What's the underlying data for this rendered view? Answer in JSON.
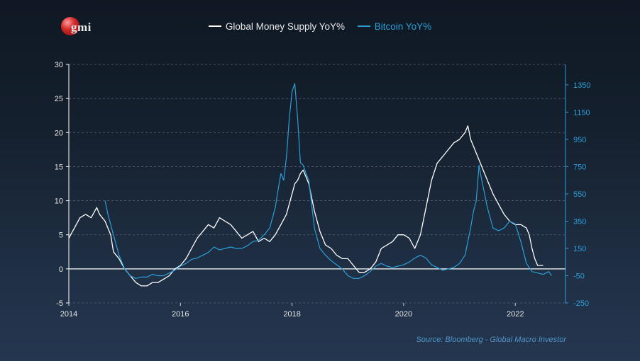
{
  "colors": {
    "money": "#ffffff",
    "bitcoin": "#2b9fd9",
    "left_axis": "#ffffff",
    "right_axis": "#2b9fd9",
    "grid": "#556477"
  },
  "logo": {
    "text": "gmi"
  },
  "source": "Source: Bloomberg - Global Macro Investor",
  "chart_data": {
    "type": "line",
    "title": "",
    "legend_position": "top-center",
    "grid": "horizontal-dashed",
    "x_ticks": [
      "2014",
      "2016",
      "2018",
      "2020",
      "2022"
    ],
    "x_range": [
      2014,
      2022.9
    ],
    "y_left": {
      "ticks": [
        "30",
        "25",
        "20",
        "15",
        "10",
        "5",
        "0",
        "-5"
      ],
      "range": [
        -5,
        30
      ]
    },
    "y_right": {
      "ticks": [
        "1350",
        "1150",
        "950",
        "750",
        "550",
        "350",
        "150",
        "-50",
        "-250"
      ],
      "range": [
        -250,
        1500
      ]
    },
    "series": [
      {
        "name": "Global Money Supply YoY%",
        "axis": "left",
        "color": "#ffffff",
        "points": [
          [
            2014.0,
            4.5
          ],
          [
            2014.1,
            6.0
          ],
          [
            2014.2,
            7.5
          ],
          [
            2014.3,
            8.0
          ],
          [
            2014.4,
            7.5
          ],
          [
            2014.5,
            9.0
          ],
          [
            2014.55,
            8.0
          ],
          [
            2014.65,
            7.0
          ],
          [
            2014.75,
            5.0
          ],
          [
            2014.8,
            2.5
          ],
          [
            2014.9,
            1.5
          ],
          [
            2015.0,
            0.0
          ],
          [
            2015.1,
            -1.0
          ],
          [
            2015.2,
            -2.0
          ],
          [
            2015.3,
            -2.5
          ],
          [
            2015.4,
            -2.5
          ],
          [
            2015.5,
            -2.0
          ],
          [
            2015.6,
            -2.0
          ],
          [
            2015.7,
            -1.5
          ],
          [
            2015.8,
            -1.0
          ],
          [
            2015.9,
            0.0
          ],
          [
            2016.0,
            0.5
          ],
          [
            2016.1,
            1.5
          ],
          [
            2016.2,
            3.0
          ],
          [
            2016.3,
            4.5
          ],
          [
            2016.4,
            5.5
          ],
          [
            2016.5,
            6.5
          ],
          [
            2016.6,
            6.0
          ],
          [
            2016.7,
            7.5
          ],
          [
            2016.8,
            7.0
          ],
          [
            2016.9,
            6.5
          ],
          [
            2017.0,
            5.5
          ],
          [
            2017.1,
            4.5
          ],
          [
            2017.2,
            5.0
          ],
          [
            2017.3,
            5.5
          ],
          [
            2017.4,
            4.0
          ],
          [
            2017.5,
            4.5
          ],
          [
            2017.6,
            4.0
          ],
          [
            2017.7,
            5.0
          ],
          [
            2017.8,
            6.5
          ],
          [
            2017.9,
            8.0
          ],
          [
            2018.0,
            11.0
          ],
          [
            2018.05,
            12.5
          ],
          [
            2018.1,
            13.0
          ],
          [
            2018.15,
            14.0
          ],
          [
            2018.2,
            14.5
          ],
          [
            2018.25,
            13.5
          ],
          [
            2018.3,
            12.5
          ],
          [
            2018.4,
            8.5
          ],
          [
            2018.5,
            5.5
          ],
          [
            2018.6,
            3.5
          ],
          [
            2018.7,
            3.0
          ],
          [
            2018.8,
            2.0
          ],
          [
            2018.9,
            1.5
          ],
          [
            2019.0,
            1.5
          ],
          [
            2019.1,
            0.5
          ],
          [
            2019.2,
            -0.5
          ],
          [
            2019.3,
            -0.5
          ],
          [
            2019.4,
            0.0
          ],
          [
            2019.5,
            1.0
          ],
          [
            2019.6,
            3.0
          ],
          [
            2019.7,
            3.5
          ],
          [
            2019.8,
            4.0
          ],
          [
            2019.9,
            5.0
          ],
          [
            2020.0,
            5.0
          ],
          [
            2020.1,
            4.5
          ],
          [
            2020.2,
            3.0
          ],
          [
            2020.3,
            5.0
          ],
          [
            2020.4,
            9.0
          ],
          [
            2020.5,
            13.0
          ],
          [
            2020.6,
            15.5
          ],
          [
            2020.7,
            16.5
          ],
          [
            2020.8,
            17.5
          ],
          [
            2020.9,
            18.5
          ],
          [
            2021.0,
            19.0
          ],
          [
            2021.1,
            20.0
          ],
          [
            2021.15,
            21.0
          ],
          [
            2021.2,
            19.0
          ],
          [
            2021.3,
            17.0
          ],
          [
            2021.4,
            15.0
          ],
          [
            2021.5,
            13.0
          ],
          [
            2021.6,
            11.0
          ],
          [
            2021.7,
            9.5
          ],
          [
            2021.8,
            8.0
          ],
          [
            2021.9,
            7.0
          ],
          [
            2022.0,
            6.5
          ],
          [
            2022.1,
            6.5
          ],
          [
            2022.2,
            6.0
          ],
          [
            2022.25,
            5.0
          ],
          [
            2022.3,
            3.0
          ],
          [
            2022.35,
            1.5
          ],
          [
            2022.4,
            0.5
          ],
          [
            2022.5,
            0.5
          ]
        ]
      },
      {
        "name": "Bitcoin YoY%",
        "axis": "right",
        "color": "#2b9fd9",
        "points": [
          [
            2014.65,
            500
          ],
          [
            2014.7,
            400
          ],
          [
            2014.8,
            250
          ],
          [
            2014.9,
            100
          ],
          [
            2015.0,
            0
          ],
          [
            2015.1,
            -50
          ],
          [
            2015.2,
            -70
          ],
          [
            2015.3,
            -60
          ],
          [
            2015.4,
            -60
          ],
          [
            2015.5,
            -40
          ],
          [
            2015.6,
            -50
          ],
          [
            2015.7,
            -50
          ],
          [
            2015.8,
            -30
          ],
          [
            2015.9,
            -10
          ],
          [
            2016.0,
            20
          ],
          [
            2016.1,
            40
          ],
          [
            2016.2,
            70
          ],
          [
            2016.3,
            80
          ],
          [
            2016.4,
            100
          ],
          [
            2016.5,
            120
          ],
          [
            2016.6,
            160
          ],
          [
            2016.7,
            140
          ],
          [
            2016.8,
            150
          ],
          [
            2016.9,
            160
          ],
          [
            2017.0,
            150
          ],
          [
            2017.1,
            150
          ],
          [
            2017.2,
            170
          ],
          [
            2017.3,
            200
          ],
          [
            2017.4,
            210
          ],
          [
            2017.5,
            250
          ],
          [
            2017.6,
            300
          ],
          [
            2017.7,
            450
          ],
          [
            2017.75,
            580
          ],
          [
            2017.8,
            700
          ],
          [
            2017.85,
            650
          ],
          [
            2017.9,
            820
          ],
          [
            2017.95,
            1100
          ],
          [
            2018.0,
            1300
          ],
          [
            2018.05,
            1360
          ],
          [
            2018.1,
            1100
          ],
          [
            2018.15,
            780
          ],
          [
            2018.2,
            760
          ],
          [
            2018.25,
            700
          ],
          [
            2018.3,
            650
          ],
          [
            2018.4,
            300
          ],
          [
            2018.5,
            150
          ],
          [
            2018.6,
            100
          ],
          [
            2018.7,
            60
          ],
          [
            2018.8,
            30
          ],
          [
            2018.9,
            0
          ],
          [
            2019.0,
            -50
          ],
          [
            2019.1,
            -70
          ],
          [
            2019.2,
            -70
          ],
          [
            2019.3,
            -50
          ],
          [
            2019.4,
            -20
          ],
          [
            2019.5,
            20
          ],
          [
            2019.6,
            40
          ],
          [
            2019.7,
            20
          ],
          [
            2019.8,
            10
          ],
          [
            2019.9,
            20
          ],
          [
            2020.0,
            30
          ],
          [
            2020.1,
            50
          ],
          [
            2020.2,
            80
          ],
          [
            2020.3,
            100
          ],
          [
            2020.4,
            80
          ],
          [
            2020.5,
            30
          ],
          [
            2020.6,
            10
          ],
          [
            2020.7,
            -10
          ],
          [
            2020.8,
            0
          ],
          [
            2020.9,
            10
          ],
          [
            2021.0,
            40
          ],
          [
            2021.1,
            100
          ],
          [
            2021.2,
            300
          ],
          [
            2021.25,
            420
          ],
          [
            2021.3,
            500
          ],
          [
            2021.35,
            760
          ],
          [
            2021.4,
            650
          ],
          [
            2021.5,
            450
          ],
          [
            2021.6,
            300
          ],
          [
            2021.7,
            280
          ],
          [
            2021.8,
            300
          ],
          [
            2021.9,
            350
          ],
          [
            2022.0,
            330
          ],
          [
            2022.1,
            200
          ],
          [
            2022.2,
            40
          ],
          [
            2022.3,
            -20
          ],
          [
            2022.4,
            -30
          ],
          [
            2022.5,
            -40
          ],
          [
            2022.6,
            -20
          ],
          [
            2022.65,
            -50
          ]
        ]
      }
    ]
  }
}
